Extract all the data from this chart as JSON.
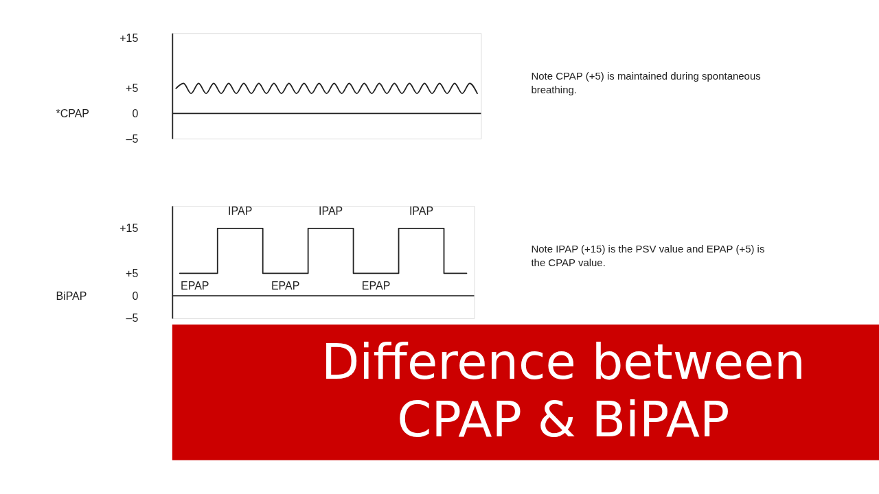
{
  "chart_data": [
    {
      "type": "line",
      "ylabel": "*CPAP",
      "categories": [
        null,
        null,
        null,
        null,
        null,
        null,
        null,
        null,
        null,
        null,
        null,
        null,
        null,
        null,
        null,
        null,
        null,
        null,
        null,
        null,
        null,
        null,
        null,
        null,
        null,
        null,
        null,
        null,
        null,
        null,
        null,
        null,
        null,
        null,
        null,
        null,
        null,
        null,
        null,
        null,
        null
      ],
      "series": [
        {
          "color": "#222222",
          "values": [
            5,
            6,
            4,
            6,
            4,
            6,
            4,
            6,
            4,
            6,
            4,
            6,
            4,
            6,
            4,
            6,
            4,
            6,
            4,
            6,
            4,
            6,
            4,
            6,
            4,
            6,
            4,
            6,
            4,
            6,
            4,
            6,
            4,
            6,
            4,
            6,
            4,
            6,
            4,
            6,
            4
          ]
        }
      ],
      "ylim": [
        -5,
        16
      ],
      "yticks": [
        {
          "value": 15,
          "label": "+15"
        },
        {
          "value": 5,
          "label": "+5"
        },
        0,
        {
          "value": -5,
          "label": "–5"
        }
      ],
      "tick_labels": "y",
      "line_style": "solid",
      "ref_lines": [
        {
          "axis": "y",
          "value": 0,
          "color": "#222222"
        }
      ],
      "annotations": [
        "Note CPAP (+5) is maintained during spontaneous breathing."
      ]
    },
    {
      "type": "step",
      "ylabel": "BiPAP",
      "categories": [
        null,
        null,
        null,
        null,
        null,
        null,
        null,
        null,
        null,
        null,
        null,
        null,
        null,
        null,
        null,
        null,
        null,
        null,
        null,
        null
      ],
      "series": [
        {
          "color": "#222222",
          "values": [
            5,
            5,
            5,
            15,
            15,
            15,
            5,
            5,
            5,
            15,
            15,
            15,
            5,
            5,
            5,
            15,
            15,
            15,
            5,
            5
          ]
        }
      ],
      "ylim": [
        -5,
        20
      ],
      "yticks": [
        {
          "value": 15,
          "label": "+15"
        },
        {
          "value": 5,
          "label": "+5"
        },
        0,
        {
          "value": -5,
          "label": "–5"
        }
      ],
      "tick_labels": "y",
      "line_style": "solid",
      "ref_lines": [
        {
          "axis": "y",
          "value": 0,
          "color": "#222222"
        }
      ],
      "annotations": [
        {
          "text": "IPAP",
          "y": 15
        },
        {
          "text": "IPAP",
          "y": 15
        },
        {
          "text": "IPAP",
          "y": 15
        },
        {
          "text": "EPAP",
          "y": 5
        },
        {
          "text": "EPAP",
          "y": 5
        },
        {
          "text": "EPAP",
          "y": 5
        },
        "Note IPAP (+15) is the PSV value and EPAP (+5) is the CPAP value."
      ]
    },
    {
      "type": "other",
      "title": "Difference between CPAP & BiPAP"
    }
  ]
}
